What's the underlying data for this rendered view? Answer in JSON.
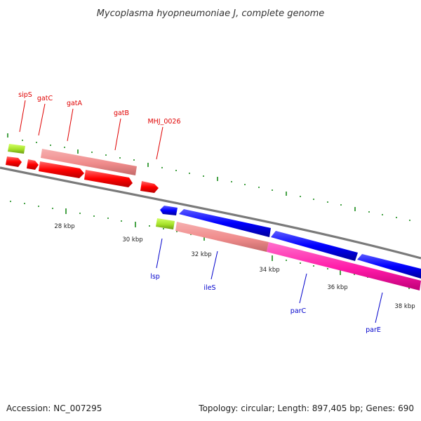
{
  "title": "Mycoplasma hyopneumoniae J, complete genome",
  "footer": {
    "accession": "Accession: NC_007295",
    "topology": "Topology: circular; Length: 897,405 bp; Genes: 690"
  },
  "axis": {
    "ticks": [
      "28 kbp",
      "30 kbp",
      "32 kbp",
      "34 kbp",
      "36 kbp",
      "38 kbp"
    ]
  },
  "genes_top": [
    {
      "name": "sipS",
      "color": "#ff0000"
    },
    {
      "name": "gatC",
      "color": "#ff0000"
    },
    {
      "name": "gatA",
      "color": "#ff0000"
    },
    {
      "name": "gatB",
      "color": "#ff0000"
    },
    {
      "name": "MHJ_0026",
      "color": "#ff0000"
    }
  ],
  "genes_bottom": [
    {
      "name": "lsp",
      "color": "#0000ff"
    },
    {
      "name": "ileS",
      "color": "#0000ff"
    },
    {
      "name": "parC",
      "color": "#0000ff"
    },
    {
      "name": "parE",
      "color": "#0000ff"
    }
  ],
  "colors": {
    "forward_cds": "#ff0000",
    "reverse_cds": "#0000ff",
    "rna": "#99dd22",
    "backbone": "#808080",
    "cog_salmon": "#f08c8c",
    "cog_magenta": "#ff1aa8",
    "tick_green": "#1a8c1a"
  }
}
